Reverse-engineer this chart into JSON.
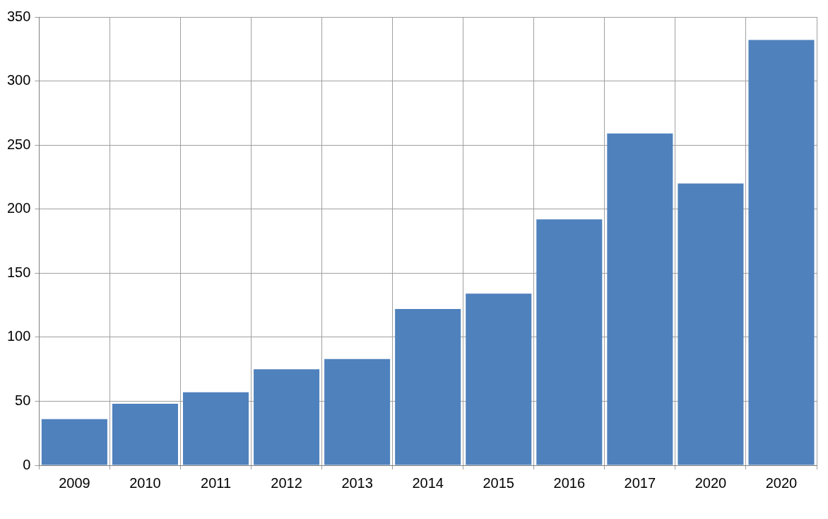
{
  "chart_data": {
    "type": "bar",
    "categories": [
      "2009",
      "2010",
      "2011",
      "2012",
      "2013",
      "2014",
      "2015",
      "2016",
      "2017",
      "2020",
      "2020"
    ],
    "values": [
      36,
      48,
      57,
      75,
      83,
      122,
      134,
      192,
      259,
      220,
      332
    ],
    "color": "#4f81bd",
    "ylim": [
      0,
      350
    ],
    "yticks": [
      0,
      50,
      100,
      150,
      200,
      250,
      300,
      350
    ],
    "grid": true
  }
}
